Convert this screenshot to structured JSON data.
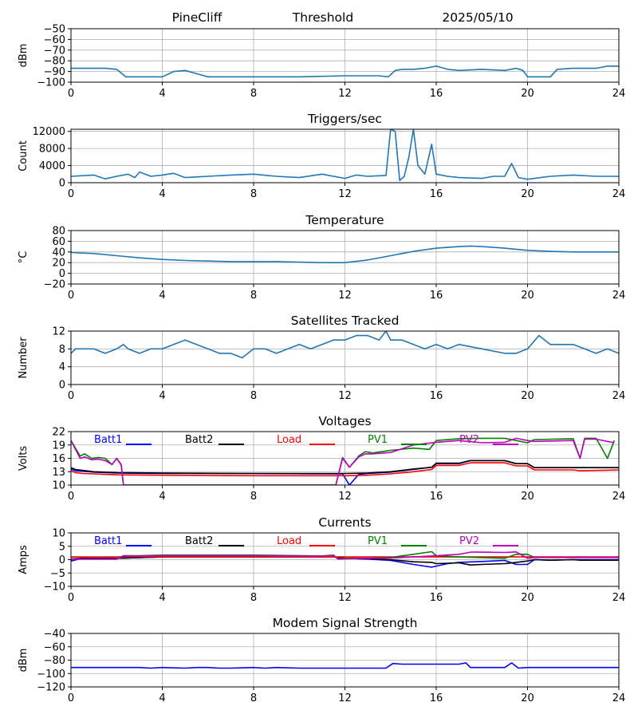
{
  "header": {
    "site": "PineCliff",
    "mode": "Threshold",
    "date": "2025/05/10"
  },
  "colors": {
    "default_line": "#1f77b4",
    "batt1": "#0000ff",
    "batt2": "#000000",
    "load": "#ff0000",
    "pv1": "#008000",
    "pv2": "#bf00bf",
    "grid": "#b0b0b0"
  },
  "chart_data": [
    {
      "type": "line",
      "title": "",
      "ylabel": "dBm",
      "xlim": [
        0,
        24
      ],
      "ylim": [
        -100,
        -50
      ],
      "xticks": [
        0,
        4,
        8,
        12,
        16,
        20,
        24
      ],
      "yticks": [
        -100,
        -90,
        -80,
        -70,
        -60,
        -50
      ],
      "grid": true,
      "series": [
        {
          "color_key": "default_line",
          "x": [
            0,
            0.5,
            1,
            1.5,
            2.0,
            2.4,
            3.0,
            3.5,
            4.0,
            4.5,
            5.0,
            6,
            8,
            10,
            12,
            13.5,
            13.9,
            14.2,
            14.5,
            15,
            15.5,
            16.0,
            16.5,
            17,
            18,
            19,
            19.5,
            19.8,
            20.0,
            20.5,
            21.0,
            21.3,
            22,
            23,
            23.5,
            24
          ],
          "y": [
            -87,
            -87,
            -87,
            -87,
            -88,
            -95,
            -95,
            -95,
            -95,
            -90,
            -89,
            -95,
            -95,
            -95,
            -94,
            -94,
            -95,
            -89,
            -88,
            -88,
            -87,
            -85,
            -88,
            -89,
            -88,
            -89,
            -87,
            -89,
            -95,
            -95,
            -95,
            -88,
            -87,
            -87,
            -85,
            -85
          ]
        }
      ]
    },
    {
      "type": "line",
      "title": "Triggers/sec",
      "ylabel": "Count",
      "xlim": [
        0,
        24
      ],
      "ylim": [
        0,
        12500
      ],
      "xticks": [
        0,
        4,
        8,
        12,
        16,
        20,
        24
      ],
      "yticks": [
        0,
        4000,
        8000,
        12000
      ],
      "grid": true,
      "series": [
        {
          "color_key": "default_line",
          "x": [
            0,
            1,
            1.5,
            2,
            2.5,
            2.8,
            3,
            3.5,
            4,
            4.5,
            5,
            6,
            7,
            8,
            9,
            10,
            11,
            11.5,
            12,
            12.5,
            13,
            13.8,
            14.0,
            14.2,
            14.4,
            14.6,
            14.8,
            15.0,
            15.2,
            15.5,
            15.8,
            16.0,
            16.5,
            17,
            18,
            18.5,
            19,
            19.3,
            19.6,
            20,
            21,
            22,
            23,
            24
          ],
          "y": [
            1500,
            1800,
            900,
            1500,
            2000,
            1200,
            2500,
            1500,
            1800,
            2200,
            1200,
            1500,
            1800,
            2000,
            1500,
            1200,
            2000,
            1500,
            1000,
            1800,
            1500,
            1700,
            12500,
            12000,
            500,
            1500,
            6000,
            12500,
            4000,
            2000,
            9000,
            2000,
            1500,
            1200,
            1000,
            1500,
            1500,
            4500,
            1200,
            800,
            1500,
            1800,
            1500,
            1500
          ]
        }
      ]
    },
    {
      "type": "line",
      "title": "Temperature",
      "ylabel": "°C",
      "xlim": [
        0,
        24
      ],
      "ylim": [
        -20,
        80
      ],
      "xticks": [
        0,
        4,
        8,
        12,
        16,
        20,
        24
      ],
      "yticks": [
        -20,
        0,
        20,
        40,
        60,
        80
      ],
      "grid": true,
      "series": [
        {
          "color_key": "default_line",
          "x": [
            0,
            1,
            2,
            3,
            4,
            5,
            6,
            7,
            8,
            9,
            10,
            11,
            12,
            13,
            14,
            15,
            16,
            17,
            17.5,
            18,
            19,
            20,
            21,
            22,
            23,
            24
          ],
          "y": [
            39,
            37,
            33,
            29,
            26,
            24,
            23,
            22,
            22,
            22,
            21,
            20,
            20,
            25,
            33,
            41,
            47,
            50,
            51,
            50,
            47,
            43,
            41,
            40,
            40,
            40
          ]
        }
      ]
    },
    {
      "type": "line",
      "title": "Satellites Tracked",
      "ylabel": "Number",
      "xlim": [
        0,
        24
      ],
      "ylim": [
        0,
        12
      ],
      "xticks": [
        0,
        4,
        8,
        12,
        16,
        20,
        24
      ],
      "yticks": [
        0,
        4,
        8,
        12
      ],
      "grid": true,
      "series": [
        {
          "color_key": "default_line",
          "x": [
            0,
            0.2,
            1,
            1.5,
            2,
            2.3,
            2.5,
            3,
            3.5,
            4,
            4.5,
            5,
            5.5,
            6,
            6.5,
            7,
            7.5,
            8,
            8.5,
            9,
            9.5,
            10,
            10.5,
            11,
            11.5,
            12,
            12.5,
            13,
            13.5,
            13.8,
            14,
            14.5,
            15,
            15.5,
            16,
            16.5,
            17,
            18,
            19,
            19.5,
            20,
            20.5,
            21,
            22,
            22.5,
            23,
            23.5,
            24
          ],
          "y": [
            7,
            8,
            8,
            7,
            8,
            9,
            8,
            7,
            8,
            8,
            9,
            10,
            9,
            8,
            7,
            7,
            6,
            8,
            8,
            7,
            8,
            9,
            8,
            9,
            10,
            10,
            11,
            11,
            10,
            12,
            10,
            10,
            9,
            8,
            9,
            8,
            9,
            8,
            7,
            7,
            8,
            11,
            9,
            9,
            8,
            7,
            8,
            7
          ]
        }
      ]
    },
    {
      "type": "line",
      "title": "Voltages",
      "ylabel": "Volts",
      "xlim": [
        0,
        24
      ],
      "ylim": [
        10,
        22
      ],
      "xticks": [
        0,
        4,
        8,
        12,
        16,
        20,
        24
      ],
      "yticks": [
        10,
        13,
        16,
        19,
        22
      ],
      "grid": true,
      "legend": "top, horizontal",
      "series": [
        {
          "name": "Batt1",
          "color_key": "batt1",
          "x": [
            0,
            0.2,
            0.5,
            1,
            2,
            4,
            8,
            11.9,
            12.2,
            12.6,
            13,
            14,
            15,
            15.8,
            16,
            17,
            17.5,
            19,
            19.5,
            20,
            20.3,
            22,
            22.3,
            24
          ],
          "y": [
            13.6,
            13.2,
            13.1,
            12.9,
            12.7,
            12.6,
            12.6,
            12.5,
            10.0,
            12.4,
            12.6,
            12.9,
            13.5,
            14.0,
            14.8,
            14.8,
            15.5,
            15.5,
            14.8,
            14.8,
            13.9,
            13.9,
            13.9,
            13.9
          ]
        },
        {
          "name": "Batt2",
          "color_key": "batt2",
          "x": [
            0,
            0.2,
            0.5,
            1,
            2,
            4,
            8,
            12,
            13,
            14,
            15,
            15.8,
            16,
            17,
            17.5,
            19,
            19.5,
            20,
            20.3,
            22,
            24
          ],
          "y": [
            13.9,
            13.5,
            13.3,
            13.0,
            12.8,
            12.7,
            12.6,
            12.6,
            12.7,
            13.0,
            13.6,
            14.0,
            14.9,
            14.9,
            15.5,
            15.5,
            14.8,
            14.8,
            13.9,
            13.9,
            13.9
          ]
        },
        {
          "name": "Load",
          "color_key": "load",
          "x": [
            0,
            0.2,
            0.5,
            1,
            2,
            4,
            8,
            12,
            13,
            14,
            15,
            15.8,
            16,
            17,
            17.5,
            19,
            19.5,
            20,
            20.3,
            22,
            22.3,
            24
          ],
          "y": [
            13.2,
            12.8,
            12.6,
            12.5,
            12.3,
            12.2,
            12.1,
            12.1,
            12.2,
            12.5,
            13.0,
            13.5,
            14.4,
            14.4,
            15.0,
            15.0,
            14.3,
            14.3,
            13.4,
            13.4,
            13.2,
            13.4
          ]
        },
        {
          "name": "PV1",
          "color_key": "pv1",
          "x": [
            0,
            0.4,
            0.6,
            0.9,
            1.2,
            1.5,
            1.8,
            2.0,
            2.2,
            2.3,
            11.6,
            11.9,
            12.2,
            12.6,
            12.9,
            13.2,
            14,
            15,
            15.7,
            16,
            17,
            18,
            19,
            19.5,
            20,
            20.3,
            22,
            22.3,
            22.5,
            23,
            23.5,
            23.8
          ],
          "y": [
            20,
            16.5,
            17.0,
            16.0,
            16.2,
            16.0,
            14.6,
            16.0,
            14.5,
            10.0,
            10.0,
            16.2,
            14.0,
            16.5,
            17.5,
            17.2,
            17.8,
            18.3,
            18.0,
            20.0,
            20.4,
            20.5,
            20.5,
            20.0,
            19.5,
            20.2,
            20.4,
            16.0,
            20.5,
            20.5,
            16.0,
            20.0
          ]
        },
        {
          "name": "PV2",
          "color_key": "pv2",
          "x": [
            0,
            0.4,
            0.6,
            0.9,
            1.2,
            1.5,
            1.8,
            2.0,
            2.2,
            2.3,
            11.6,
            11.9,
            12.2,
            12.6,
            12.9,
            13.2,
            14,
            15,
            16,
            17,
            18,
            19,
            19.5,
            20,
            20.3,
            22,
            22.3,
            22.5,
            23,
            23.8
          ],
          "y": [
            20,
            16.0,
            16.3,
            15.7,
            15.8,
            15.5,
            14.6,
            16.0,
            14.6,
            10.0,
            10.0,
            16.0,
            14.0,
            16.3,
            17.0,
            17.0,
            17.3,
            19.0,
            19.6,
            20.0,
            19.5,
            19.6,
            20.5,
            20.0,
            19.8,
            20.0,
            16.0,
            20.3,
            20.3,
            19.5
          ]
        }
      ]
    },
    {
      "type": "line",
      "title": "Currents",
      "ylabel": "Amps",
      "xlim": [
        0,
        24
      ],
      "ylim": [
        -10,
        10
      ],
      "xticks": [
        0,
        4,
        8,
        12,
        16,
        20,
        24
      ],
      "yticks": [
        -10,
        -5,
        0,
        5,
        10
      ],
      "grid": true,
      "legend": "top, horizontal",
      "series": [
        {
          "name": "Batt1",
          "color_key": "batt1",
          "x": [
            0,
            0.5,
            1,
            2,
            4,
            8,
            11.5,
            12,
            13,
            14,
            15,
            15.8,
            16.5,
            17,
            18,
            19,
            19.5,
            20,
            20.3,
            21,
            22,
            24
          ],
          "y": [
            -0.5,
            0.5,
            0.5,
            0.5,
            1.0,
            1.0,
            1.0,
            0.5,
            0.2,
            -0.3,
            -1.8,
            -2.8,
            -1.5,
            -1.0,
            -0.7,
            -0.3,
            -1.8,
            -1.8,
            0.0,
            -0.2,
            0.0,
            0.0
          ]
        },
        {
          "name": "Batt2",
          "color_key": "batt2",
          "x": [
            0,
            0.5,
            1,
            2,
            4,
            8,
            11.5,
            12,
            13,
            14,
            15,
            15.8,
            16,
            17,
            17.5,
            18,
            19,
            19.5,
            20,
            20.3,
            21,
            22,
            22.3,
            24
          ],
          "y": [
            0.3,
            0.5,
            0.5,
            0.5,
            1.0,
            1.0,
            1.0,
            0.5,
            0.3,
            0.0,
            -0.8,
            -1.0,
            -1.5,
            -1.2,
            -2.0,
            -1.8,
            -1.5,
            -1.0,
            -0.5,
            0.0,
            -0.2,
            0.0,
            -0.2,
            -0.2
          ]
        },
        {
          "name": "Load",
          "color_key": "load",
          "x": [
            0,
            4,
            8,
            12,
            16,
            20,
            24
          ],
          "y": [
            1.0,
            1.1,
            1.1,
            1.0,
            1.0,
            1.0,
            1.0
          ]
        },
        {
          "name": "PV1",
          "color_key": "pv1",
          "x": [
            0,
            2,
            2.3,
            3,
            4,
            8,
            11,
            11.5,
            11.7,
            12,
            13,
            14,
            15,
            15.8,
            16,
            17,
            19,
            19.5,
            20,
            20.3,
            24
          ],
          "y": [
            0.2,
            0.2,
            1.5,
            1.5,
            1.7,
            1.7,
            1.4,
            1.7,
            0.3,
            0.5,
            0.5,
            0.8,
            2.0,
            3.0,
            1.5,
            1.0,
            0.5,
            2.0,
            2.0,
            0.8,
            0.8
          ]
        },
        {
          "name": "PV2",
          "color_key": "pv2",
          "x": [
            0,
            2,
            2.3,
            3,
            4,
            8,
            11,
            11.5,
            11.7,
            12,
            13,
            14,
            15,
            16,
            17,
            17.5,
            18,
            19,
            19.5,
            20,
            20.3,
            24
          ],
          "y": [
            0.2,
            0.2,
            1.3,
            1.3,
            1.5,
            1.5,
            1.3,
            1.5,
            0.2,
            0.3,
            0.5,
            0.6,
            1.0,
            1.5,
            2.0,
            2.8,
            2.8,
            2.7,
            2.9,
            0.5,
            0.8,
            0.8
          ]
        }
      ]
    },
    {
      "type": "line",
      "title": "Modem Signal Strength",
      "ylabel": "dBm",
      "xlim": [
        0,
        24
      ],
      "ylim": [
        -120,
        -40
      ],
      "xticks": [
        0,
        4,
        8,
        12,
        16,
        20,
        24
      ],
      "yticks": [
        -120,
        -100,
        -80,
        -60,
        -40
      ],
      "grid": true,
      "series": [
        {
          "color_key": "batt1",
          "x": [
            0,
            1,
            2,
            3,
            3.5,
            4,
            5,
            5.5,
            6,
            6.5,
            7,
            8,
            8.5,
            9,
            10,
            11,
            12,
            13,
            13.8,
            14.1,
            14.5,
            15,
            16,
            17,
            17.3,
            17.5,
            18,
            19,
            19.3,
            19.6,
            20,
            21,
            22,
            23,
            24
          ],
          "y": [
            -91,
            -91,
            -91,
            -91,
            -92,
            -91,
            -92,
            -91,
            -91,
            -92,
            -92,
            -91,
            -92,
            -91,
            -92,
            -92,
            -92,
            -92,
            -92,
            -85,
            -86,
            -86,
            -86,
            -86,
            -84,
            -91,
            -91,
            -91,
            -84,
            -92,
            -91,
            -91,
            -91,
            -91,
            -91
          ]
        }
      ]
    }
  ]
}
